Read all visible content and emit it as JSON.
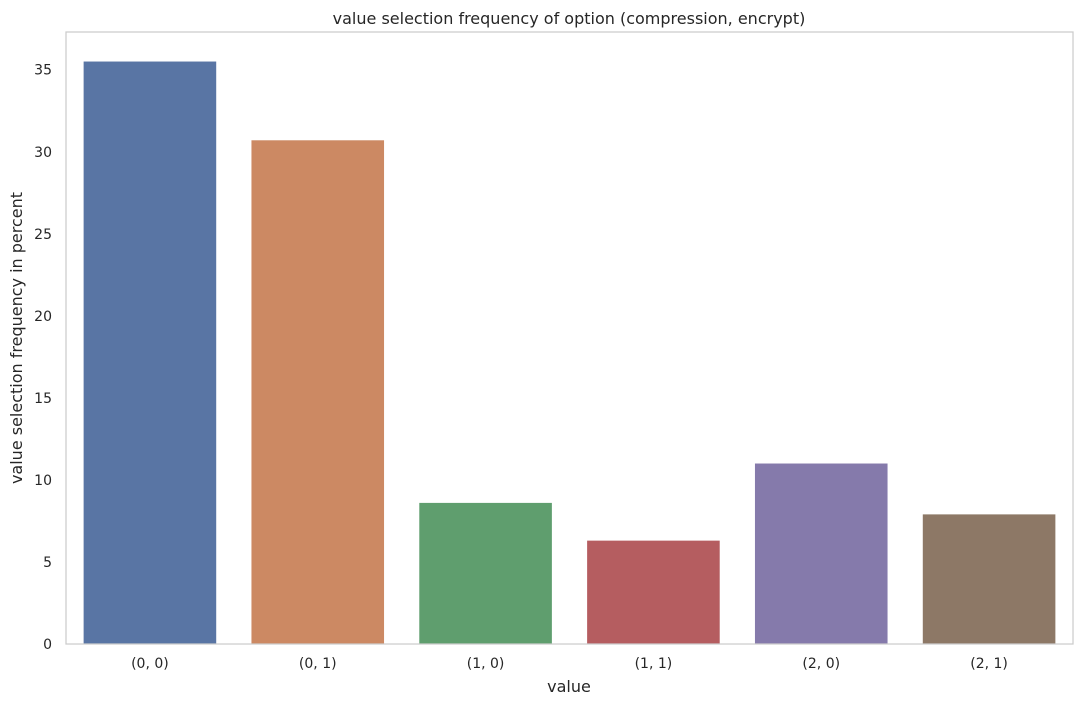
{
  "chart_data": {
    "type": "bar",
    "title": "value selection frequency of option (compression, encrypt)",
    "xlabel": "value",
    "ylabel": "value selection frequency in percent",
    "categories": [
      "(0, 0)",
      "(0, 1)",
      "(1, 0)",
      "(1, 1)",
      "(2, 0)",
      "(2, 1)"
    ],
    "values": [
      35.5,
      30.7,
      8.6,
      6.3,
      11.0,
      7.9
    ],
    "colors": [
      "#5975a4",
      "#cc8963",
      "#5f9e6e",
      "#b55d60",
      "#857aab",
      "#8d7866"
    ],
    "yticks": [
      0,
      5,
      10,
      15,
      20,
      25,
      30,
      35
    ],
    "ylim": [
      0,
      37.3
    ],
    "grid": false,
    "legend": "none"
  }
}
